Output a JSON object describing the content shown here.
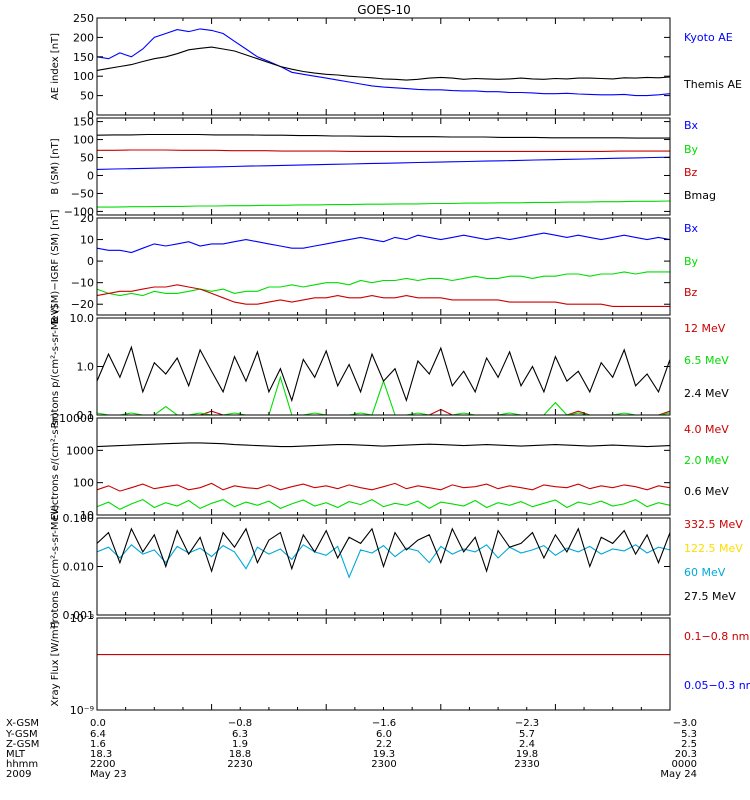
{
  "title": "GOES-10",
  "colors": {
    "black": "#000000",
    "blue": "#0000ff",
    "red": "#cc0000",
    "green": "#00dd00",
    "yellow": "#ffdd00",
    "cyan": "#00a8d8"
  },
  "chart_data": [
    {
      "type": "line",
      "ylabel": "AE index [nT]",
      "ylim": [
        0,
        250
      ],
      "scale": "linear",
      "yticks": [
        0,
        50,
        100,
        150,
        200,
        250
      ],
      "ytick_labels": [
        "0",
        "50",
        "100",
        "150",
        "200",
        "250"
      ],
      "series": [
        {
          "name": "Kyoto AE",
          "color": "blue",
          "values": [
            150,
            145,
            160,
            150,
            170,
            200,
            210,
            220,
            215,
            222,
            218,
            210,
            190,
            170,
            150,
            138,
            125,
            110,
            105,
            100,
            95,
            90,
            85,
            80,
            75,
            72,
            70,
            68,
            66,
            65,
            65,
            63,
            62,
            62,
            60,
            60,
            58,
            58,
            57,
            55,
            55,
            56,
            54,
            53,
            52,
            52,
            53,
            50,
            50,
            52,
            55
          ]
        },
        {
          "name": "Themis AE",
          "color": "black",
          "values": [
            115,
            120,
            125,
            130,
            138,
            145,
            150,
            158,
            168,
            172,
            175,
            170,
            165,
            155,
            145,
            135,
            125,
            118,
            112,
            108,
            105,
            103,
            100,
            98,
            96,
            93,
            92,
            90,
            92,
            95,
            97,
            95,
            92,
            94,
            93,
            92,
            93,
            95,
            93,
            92,
            94,
            93,
            95,
            95,
            94,
            93,
            96,
            95,
            97,
            96,
            98
          ]
        }
      ]
    },
    {
      "type": "line",
      "ylabel": "B (SM) [nT]",
      "ylim": [
        -110,
        160
      ],
      "scale": "linear",
      "yticks": [
        -100,
        -50,
        0,
        50,
        100,
        150
      ],
      "ytick_labels": [
        "−100",
        "−50",
        "0",
        "50",
        "100",
        "150"
      ],
      "series": [
        {
          "name": "Bx",
          "color": "blue",
          "values": [
            17,
            18,
            19,
            20,
            21,
            22,
            23,
            24,
            25,
            26,
            27,
            28,
            29,
            30,
            31,
            32,
            33,
            34,
            35,
            36,
            37,
            38,
            39,
            40,
            41,
            42,
            43,
            44,
            45,
            46,
            47,
            48,
            49,
            50,
            51
          ]
        },
        {
          "name": "By",
          "color": "green",
          "values": [
            -88,
            -88,
            -87,
            -87,
            -86,
            -86,
            -85,
            -85,
            -84,
            -84,
            -83,
            -83,
            -82,
            -82,
            -81,
            -81,
            -80,
            -80,
            -79,
            -79,
            -78,
            -78,
            -77,
            -77,
            -76,
            -76,
            -75,
            -75,
            -74,
            -74,
            -73,
            -73,
            -72,
            -72,
            -71
          ]
        },
        {
          "name": "Bz",
          "color": "red",
          "values": [
            70,
            70,
            71,
            71,
            71,
            70,
            70,
            70,
            69,
            69,
            69,
            68,
            68,
            68,
            68,
            67,
            67,
            67,
            67,
            67,
            67,
            67,
            67,
            67,
            67,
            67,
            67,
            67,
            67,
            67,
            67,
            68,
            68,
            68,
            68
          ]
        },
        {
          "name": "Bmag",
          "color": "black",
          "values": [
            112,
            113,
            113,
            114,
            114,
            114,
            114,
            113,
            113,
            113,
            112,
            112,
            111,
            111,
            110,
            110,
            109,
            109,
            108,
            108,
            108,
            107,
            107,
            107,
            106,
            106,
            106,
            105,
            105,
            105,
            105,
            105,
            104,
            104,
            104
          ]
        }
      ]
    },
    {
      "type": "line",
      "ylabel": "B (SM)−IGRF (SM) [nT]",
      "ylim": [
        -25,
        20
      ],
      "scale": "linear",
      "yticks": [
        -20,
        -10,
        0,
        10,
        20
      ],
      "ytick_labels": [
        "−20",
        "−10",
        "0",
        "10",
        "20"
      ],
      "series": [
        {
          "name": "Bx",
          "color": "blue",
          "values": [
            6,
            5,
            5,
            4,
            6,
            8,
            7,
            8,
            9,
            7,
            8,
            8,
            9,
            10,
            9,
            8,
            7,
            6,
            6,
            7,
            8,
            9,
            10,
            11,
            10,
            9,
            11,
            10,
            12,
            11,
            10,
            11,
            12,
            11,
            10,
            11,
            10,
            11,
            12,
            13,
            12,
            11,
            12,
            11,
            10,
            11,
            12,
            11,
            10,
            11,
            10
          ]
        },
        {
          "name": "By",
          "color": "green",
          "values": [
            -13,
            -15,
            -16,
            -15,
            -16,
            -14,
            -15,
            -15,
            -14,
            -13,
            -14,
            -13,
            -15,
            -14,
            -14,
            -12,
            -12,
            -11,
            -12,
            -11,
            -10,
            -10,
            -11,
            -9,
            -10,
            -9,
            -9,
            -8,
            -9,
            -8,
            -8,
            -9,
            -8,
            -7,
            -8,
            -8,
            -7,
            -7,
            -8,
            -7,
            -7,
            -6,
            -6,
            -7,
            -6,
            -6,
            -5,
            -6,
            -5,
            -5,
            -5
          ]
        },
        {
          "name": "Bz",
          "color": "red",
          "values": [
            -16,
            -15,
            -14,
            -14,
            -13,
            -12,
            -12,
            -11,
            -12,
            -13,
            -15,
            -17,
            -19,
            -20,
            -20,
            -19,
            -18,
            -19,
            -18,
            -17,
            -17,
            -16,
            -17,
            -17,
            -16,
            -17,
            -17,
            -16,
            -17,
            -17,
            -17,
            -18,
            -18,
            -18,
            -18,
            -18,
            -19,
            -19,
            -19,
            -19,
            -19,
            -20,
            -20,
            -20,
            -20,
            -21,
            -21,
            -21,
            -21,
            -21,
            -21
          ]
        }
      ]
    },
    {
      "type": "line",
      "ylabel": "Protons p/(cm²-s-sr-MeV)",
      "ylim": [
        0.1,
        10
      ],
      "scale": "log",
      "yticks": [
        0.1,
        1,
        10
      ],
      "ytick_labels": [
        "0.1",
        "1.0",
        "10.0"
      ],
      "series": [
        {
          "name": "12 MeV",
          "color": "red",
          "values": [
            0.1,
            0.1,
            0.1,
            0.1,
            0.1,
            0.1,
            0.1,
            0.1,
            0.1,
            0.1,
            0.12,
            0.1,
            0.1,
            0.1,
            0.1,
            0.1,
            0.1,
            0.1,
            0.1,
            0.1,
            0.1,
            0.1,
            0.1,
            0.1,
            0.1,
            0.1,
            0.1,
            0.1,
            0.1,
            0.1,
            0.13,
            0.1,
            0.1,
            0.1,
            0.1,
            0.1,
            0.1,
            0.1,
            0.1,
            0.1,
            0.1,
            0.1,
            0.12,
            0.1,
            0.1,
            0.1,
            0.1,
            0.1,
            0.1,
            0.1,
            0.12
          ]
        },
        {
          "name": "6.5 MeV",
          "color": "green",
          "values": [
            0.11,
            0.1,
            0.1,
            0.11,
            0.1,
            0.1,
            0.15,
            0.1,
            0.1,
            0.11,
            0.1,
            0.1,
            0.11,
            0.1,
            0.1,
            0.1,
            0.6,
            0.1,
            0.1,
            0.11,
            0.1,
            0.1,
            0.1,
            0.11,
            0.1,
            0.5,
            0.1,
            0.1,
            0.11,
            0.1,
            0.1,
            0.1,
            0.11,
            0.1,
            0.1,
            0.1,
            0.11,
            0.1,
            0.1,
            0.1,
            0.18,
            0.1,
            0.11,
            0.1,
            0.1,
            0.1,
            0.11,
            0.1,
            0.1,
            0.1,
            0.11
          ]
        },
        {
          "name": "2.4 MeV",
          "color": "black",
          "values": [
            0.5,
            1.8,
            0.6,
            2.5,
            0.3,
            1.2,
            0.7,
            1.5,
            0.4,
            2.2,
            0.8,
            0.3,
            1.6,
            0.5,
            2.0,
            0.3,
            0.9,
            0.2,
            1.4,
            0.6,
            2.1,
            0.4,
            1.1,
            0.3,
            1.8,
            0.5,
            0.9,
            0.2,
            1.3,
            0.7,
            2.4,
            0.4,
            0.8,
            0.3,
            1.5,
            0.6,
            2.0,
            0.4,
            1.0,
            0.3,
            1.6,
            0.5,
            0.8,
            0.3,
            1.2,
            0.6,
            2.2,
            0.4,
            0.7,
            0.3,
            1.4
          ]
        }
      ]
    },
    {
      "type": "line",
      "ylabel": "Electrons e/(cm²-s-sr)",
      "ylim": [
        10,
        10000
      ],
      "scale": "log",
      "yticks": [
        10,
        100,
        1000,
        10000
      ],
      "ytick_labels": [
        "10",
        "100",
        "1000",
        "10000"
      ],
      "series": [
        {
          "name": "4.0 MeV",
          "color": "red",
          "values": [
            60,
            80,
            55,
            70,
            90,
            65,
            75,
            85,
            60,
            70,
            95,
            60,
            80,
            70,
            65,
            85,
            60,
            75,
            90,
            70,
            80,
            65,
            85,
            70,
            60,
            75,
            95,
            65,
            80,
            70,
            60,
            85,
            70,
            75,
            90,
            65,
            80,
            70,
            60,
            85,
            75,
            70,
            90,
            65,
            80,
            70,
            85,
            75,
            60,
            80,
            70
          ]
        },
        {
          "name": "2.0 MeV",
          "color": "green",
          "values": [
            18,
            25,
            15,
            22,
            30,
            17,
            24,
            19,
            28,
            16,
            23,
            30,
            18,
            25,
            20,
            27,
            16,
            22,
            29,
            19,
            24,
            17,
            26,
            21,
            30,
            18,
            23,
            20,
            27,
            16,
            25,
            22,
            19,
            28,
            17,
            24,
            20,
            26,
            18,
            23,
            29,
            17,
            25,
            21,
            27,
            19,
            22,
            30,
            18,
            24,
            20
          ]
        },
        {
          "name": "0.6 MeV",
          "color": "black",
          "values": [
            1300,
            1350,
            1400,
            1450,
            1500,
            1550,
            1600,
            1650,
            1700,
            1700,
            1650,
            1600,
            1500,
            1450,
            1400,
            1350,
            1300,
            1300,
            1350,
            1400,
            1450,
            1500,
            1500,
            1450,
            1400,
            1350,
            1400,
            1450,
            1500,
            1550,
            1500,
            1450,
            1400,
            1450,
            1500,
            1450,
            1400,
            1350,
            1400,
            1450,
            1500,
            1450,
            1400,
            1350,
            1400,
            1450,
            1400,
            1350,
            1300,
            1350,
            1400
          ]
        }
      ]
    },
    {
      "type": "line",
      "ylabel": "Protons p/(cm²-s-sr-MeV)",
      "ylim": [
        0.001,
        0.1
      ],
      "scale": "log",
      "yticks": [
        0.001,
        0.01,
        0.1
      ],
      "ytick_labels": [
        "0.001",
        "0.010",
        "0.100"
      ],
      "series": [
        {
          "name": "332.5 MeV",
          "color": "red",
          "values": []
        },
        {
          "name": "122.5 MeV",
          "color": "yellow",
          "values": []
        },
        {
          "name": "60 MeV",
          "color": "cyan",
          "values": [
            0.02,
            0.025,
            0.015,
            0.028,
            0.018,
            0.022,
            0.012,
            0.026,
            0.019,
            0.024,
            0.016,
            0.027,
            0.02,
            0.009,
            0.025,
            0.018,
            0.023,
            0.014,
            0.028,
            0.02,
            0.017,
            0.026,
            0.006,
            0.022,
            0.019,
            0.027,
            0.016,
            0.024,
            0.021,
            0.012,
            0.026,
            0.018,
            0.023,
            0.02,
            0.028,
            0.015,
            0.025,
            0.019,
            0.022,
            0.027,
            0.017,
            0.024,
            0.02,
            0.026,
            0.018,
            0.023,
            0.021,
            0.028,
            0.019,
            0.025,
            0.022
          ]
        },
        {
          "name": "27.5 MeV",
          "color": "black",
          "values": [
            0.03,
            0.05,
            0.012,
            0.06,
            0.02,
            0.045,
            0.01,
            0.055,
            0.018,
            0.04,
            0.008,
            0.05,
            0.025,
            0.06,
            0.012,
            0.035,
            0.05,
            0.009,
            0.045,
            0.02,
            0.055,
            0.015,
            0.04,
            0.03,
            0.06,
            0.01,
            0.05,
            0.022,
            0.035,
            0.045,
            0.012,
            0.06,
            0.02,
            0.04,
            0.008,
            0.055,
            0.025,
            0.03,
            0.05,
            0.015,
            0.045,
            0.02,
            0.06,
            0.01,
            0.04,
            0.03,
            0.055,
            0.018,
            0.045,
            0.012,
            0.05
          ]
        }
      ]
    },
    {
      "type": "line",
      "ylabel": "Xray Flux [W/m²]",
      "ylim": [
        1e-09,
        1e-08
      ],
      "scale": "log",
      "yticks": [
        1e-09,
        1e-08
      ],
      "ytick_labels": [
        "10⁻⁹",
        "10⁻⁸"
      ],
      "series": [
        {
          "name": "0.1−0.8 nm",
          "color": "red",
          "values": [
            4e-09,
            4e-09
          ]
        },
        {
          "name": "0.05−0.3 nm",
          "color": "blue",
          "values": []
        }
      ]
    }
  ],
  "x_axis": {
    "rows": [
      {
        "label": "X-GSM",
        "values": [
          "0.0",
          "−0.8",
          "−1.6",
          "−2.3",
          "−3.0"
        ]
      },
      {
        "label": "Y-GSM",
        "values": [
          "6.4",
          "6.3",
          "6.0",
          "5.7",
          "5.3"
        ]
      },
      {
        "label": "Z-GSM",
        "values": [
          "1.6",
          "1.9",
          "2.2",
          "2.4",
          "2.5"
        ]
      },
      {
        "label": "MLT",
        "values": [
          "18.3",
          "18.8",
          "19.3",
          "19.8",
          "20.3"
        ]
      },
      {
        "label": "hhmm",
        "values": [
          "2200",
          "2230",
          "2300",
          "2330",
          "0000"
        ]
      },
      {
        "label": "2009",
        "values": [
          "May 23",
          "",
          "",
          "",
          "May 24"
        ]
      }
    ]
  }
}
